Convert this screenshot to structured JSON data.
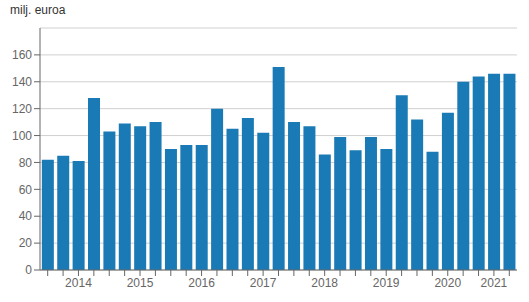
{
  "chart_data": {
    "type": "bar",
    "ylabel": "milj. euroa",
    "categories": [
      null,
      null,
      "2014",
      null,
      null,
      null,
      "2015",
      null,
      null,
      null,
      "2016",
      null,
      null,
      null,
      "2017",
      null,
      null,
      null,
      "2018",
      null,
      null,
      null,
      "2019",
      null,
      null,
      null,
      "2020",
      null,
      null,
      "2021",
      null
    ],
    "values": [
      82,
      85,
      81,
      128,
      103,
      109,
      107,
      110,
      90,
      93,
      93,
      120,
      105,
      113,
      102,
      151,
      110,
      107,
      86,
      99,
      89,
      99,
      90,
      130,
      112,
      88,
      117,
      140,
      144,
      146,
      146
    ],
    "color": "#1a7ab5",
    "ylim": [
      0,
      180
    ],
    "yticks": [
      0,
      20,
      40,
      60,
      80,
      100,
      120,
      140,
      160
    ],
    "grid": true
  }
}
